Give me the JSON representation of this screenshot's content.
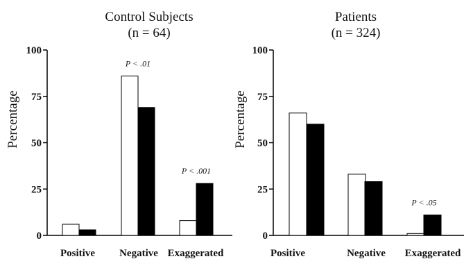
{
  "chart_data": [
    {
      "type": "bar",
      "title": "Control Subjects",
      "subtitle": "(n = 64)",
      "ylabel": "Percentage",
      "ylim": [
        0,
        100
      ],
      "yticks": [
        0,
        25,
        50,
        75,
        100
      ],
      "categories": [
        "Positive",
        "Negative",
        "Exaggerated"
      ],
      "series": [
        {
          "color": "#ffffff",
          "values": [
            6,
            86,
            8
          ]
        },
        {
          "color": "#000000",
          "values": [
            3,
            69,
            28
          ]
        }
      ],
      "annotations": [
        "",
        "P < .01",
        "P < .001"
      ],
      "grid": false,
      "legend": "none"
    },
    {
      "type": "bar",
      "title": "Patients",
      "subtitle": "(n = 324)",
      "ylabel": "Percentage",
      "ylim": [
        0,
        100
      ],
      "yticks": [
        0,
        25,
        50,
        75,
        100
      ],
      "categories": [
        "Positive",
        "Negative",
        "Exaggerated"
      ],
      "series": [
        {
          "color": "#ffffff",
          "values": [
            66,
            33,
            1
          ]
        },
        {
          "color": "#000000",
          "values": [
            60,
            29,
            11
          ]
        }
      ],
      "annotations": [
        "",
        "",
        "P < .05"
      ],
      "grid": false,
      "legend": "none"
    }
  ]
}
